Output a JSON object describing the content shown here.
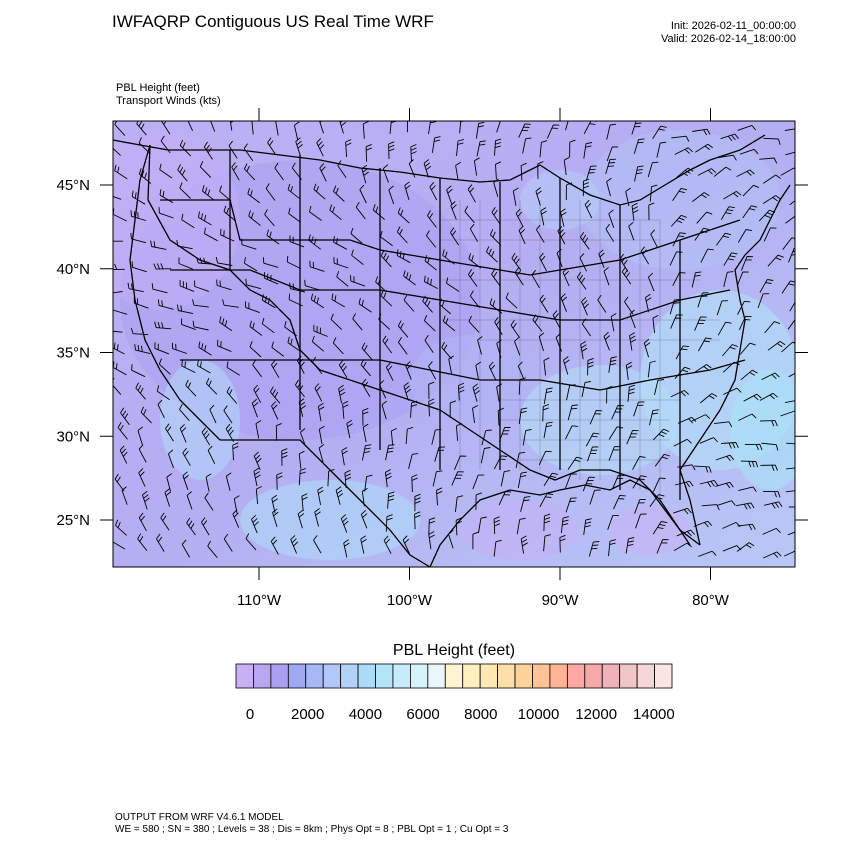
{
  "header": {
    "title": "IWFAQRP Contiguous US Real Time WRF",
    "init": "Init: 2026-02-11_00:00:00",
    "valid": "Valid: 2026-02-14_18:00:00",
    "field_1": "PBL Height   (feet)",
    "field_2": "Transport Winds   (kts)"
  },
  "map": {
    "lat_labels": [
      "45°N",
      "40°N",
      "35°N",
      "30°N",
      "25°N"
    ],
    "lat_values": [
      45,
      40,
      35,
      30,
      25
    ],
    "lon_labels": [
      "110°W",
      "100°W",
      "90°W",
      "80°W"
    ],
    "lon_values": [
      -110,
      -100,
      -90,
      -80
    ]
  },
  "colorbar": {
    "title": "PBL Height  (feet)",
    "tick_labels": [
      "0",
      "2000",
      "4000",
      "6000",
      "8000",
      "10000",
      "12000",
      "14000"
    ],
    "colors": [
      "#c9b0f5",
      "#b8a6f5",
      "#aaa0f2",
      "#a0a8f2",
      "#a8b8f5",
      "#b2c6f7",
      "#b0d2f8",
      "#aadcf8",
      "#b4e4f8",
      "#c6ecfa",
      "#d8f2fa",
      "#eaf6fb",
      "#fff4d2",
      "#fff0c0",
      "#ffe8b4",
      "#ffdfa6",
      "#ffd29c",
      "#ffc296",
      "#ffb396",
      "#ffa8a4",
      "#f6a8aa",
      "#eeb2b8",
      "#f1c6c9",
      "#f6d6d6",
      "#fbe4e4"
    ]
  },
  "footer": {
    "line1": "OUTPUT FROM WRF V4.6.1 MODEL",
    "line2": "WE = 580 ; SN = 380 ; Levels = 38 ; Dis = 8km ; Phys Opt = 8 ; PBL Opt = 1 ; Cu Opt = 3"
  }
}
